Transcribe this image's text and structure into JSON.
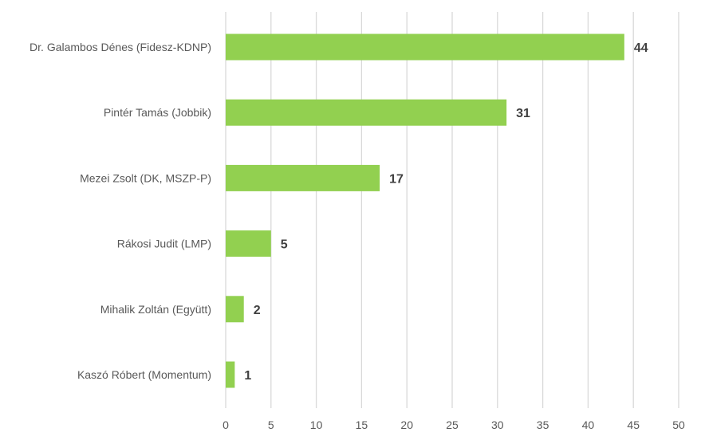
{
  "chart_data": {
    "type": "bar",
    "orientation": "horizontal",
    "categories": [
      "Dr. Galambos Dénes (Fidesz-KDNP)",
      "Pintér Tamás (Jobbik)",
      "Mezei Zsolt (DK, MSZP-P)",
      "Rákosi Judit (LMP)",
      "Mihalik Zoltán (Együtt)",
      "Kaszó Róbert (Momentum)"
    ],
    "values": [
      44,
      31,
      17,
      5,
      2,
      1
    ],
    "xlim": [
      0,
      50
    ],
    "xticks": [
      0,
      5,
      10,
      15,
      20,
      25,
      30,
      35,
      40,
      45,
      50
    ],
    "grid": true,
    "data_labels": true,
    "bar_color": "#92d050",
    "grid_color": "#d9d9d9",
    "title": "",
    "xlabel": "",
    "ylabel": ""
  }
}
